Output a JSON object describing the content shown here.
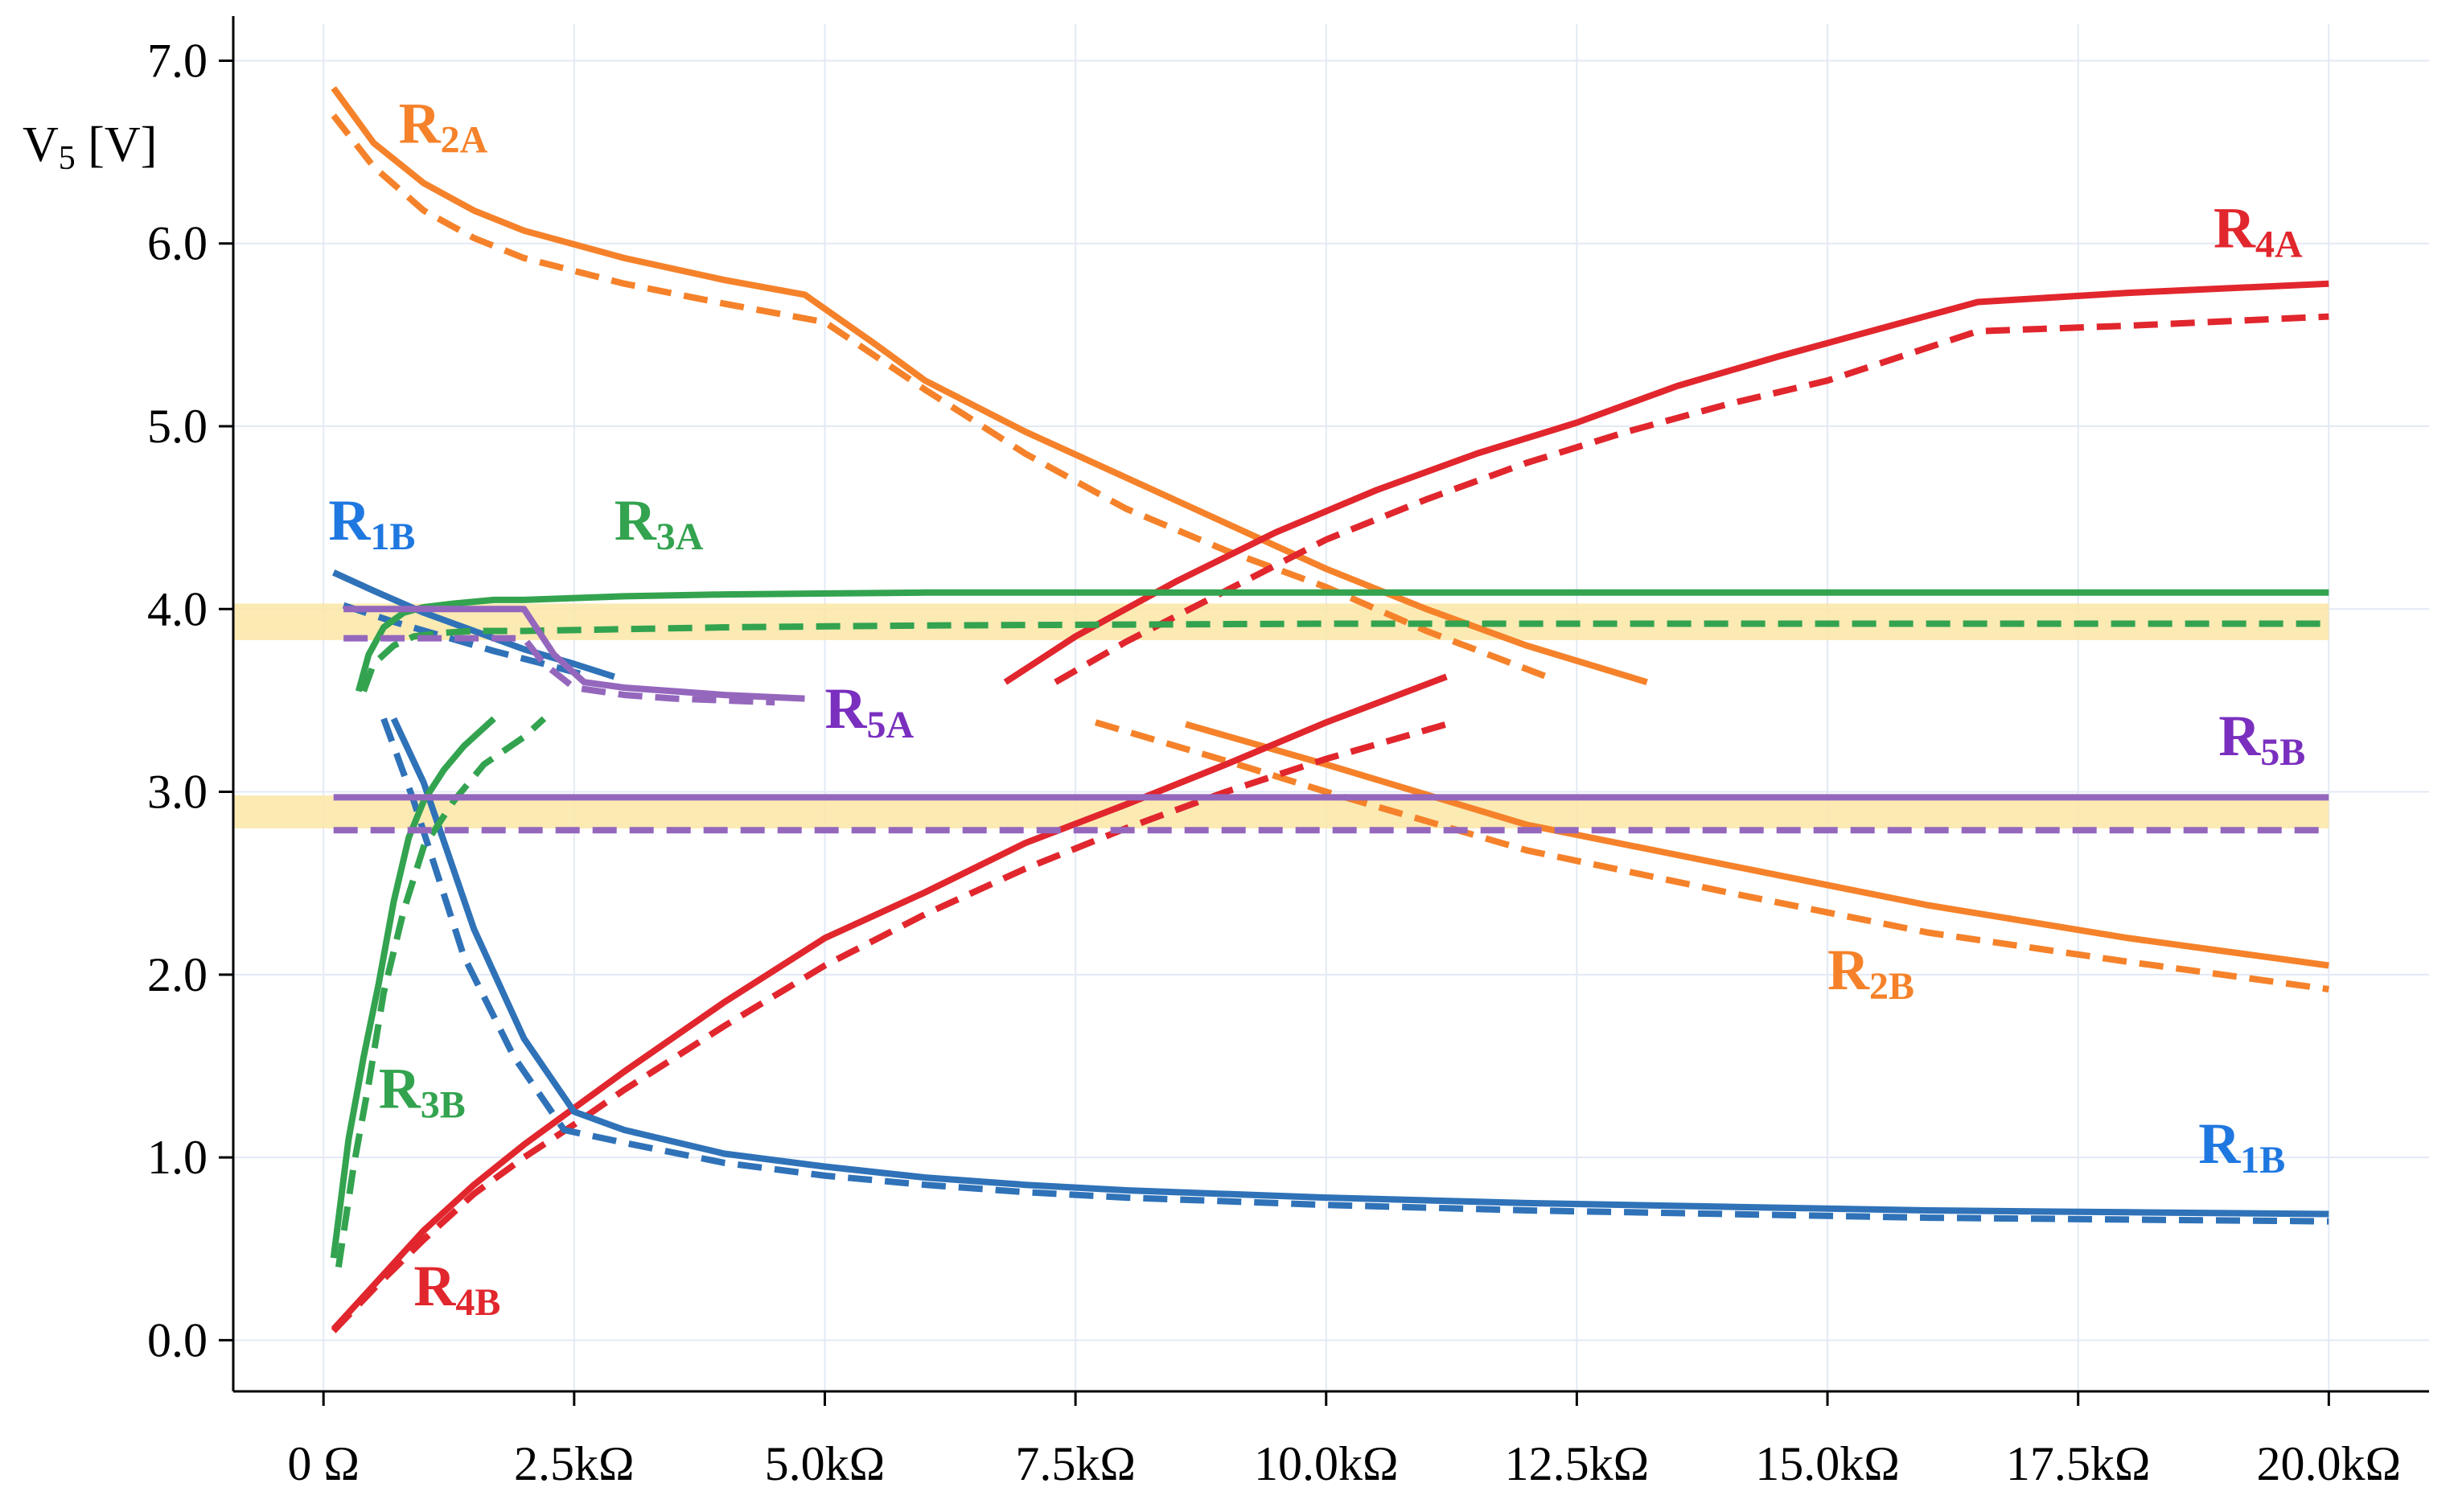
{
  "chart_data": {
    "type": "line",
    "title": "",
    "xlabel": "",
    "ylabel": "V5 [V]",
    "ylabel_parts": {
      "main": "V",
      "sub": "5",
      "unit": " [V]"
    },
    "xlim": [
      -0.9,
      21.0
    ],
    "ylim": [
      -0.28,
      7.2
    ],
    "x_ticks": [
      0,
      2.5,
      5.0,
      7.5,
      10.0,
      12.5,
      15.0,
      17.5,
      20.0
    ],
    "x_tick_labels": [
      "0 Ω",
      "2.5kΩ",
      "5.0kΩ",
      "7.5kΩ",
      "10.0kΩ",
      "12.5kΩ",
      "15.0kΩ",
      "17.5kΩ",
      "20.0kΩ"
    ],
    "y_ticks": [
      0,
      1,
      2,
      3,
      4,
      5,
      6,
      7
    ],
    "y_tick_labels": [
      "0.0",
      "1.0",
      "2.0",
      "3.0",
      "4.0",
      "5.0",
      "6.0",
      "7.0"
    ],
    "grid": true,
    "colors": {
      "orange": "#F5822A",
      "red": "#E1262D",
      "blue": "#2F72B8",
      "green": "#33A34F",
      "purple": "#9467BD",
      "band": "#FBE6A6"
    },
    "bands": [
      {
        "y": [
          3.83,
          4.03
        ],
        "x": [
          -0.9,
          20.0
        ]
      },
      {
        "y": [
          2.8,
          2.98
        ],
        "x": [
          -0.9,
          20.0
        ]
      }
    ],
    "series": [
      {
        "name": "R2A",
        "color": "#F5822A",
        "style": "solid",
        "x": [
          0.1,
          0.5,
          1.0,
          1.5,
          2.0,
          3.0,
          4.0,
          4.8,
          5.5,
          6.0,
          7.0,
          8.0,
          9.0,
          10.0,
          11.0,
          12.0,
          13.2
        ],
        "y": [
          6.85,
          6.55,
          6.33,
          6.18,
          6.07,
          5.92,
          5.8,
          5.72,
          5.45,
          5.25,
          4.97,
          4.72,
          4.47,
          4.22,
          4.0,
          3.8,
          3.6
        ]
      },
      {
        "name": "R2A",
        "color": "#F5822A",
        "style": "dashed",
        "x": [
          0.1,
          0.5,
          1.0,
          1.5,
          2.0,
          3.0,
          4.0,
          5.0,
          6.0,
          7.0,
          8.0,
          9.0,
          10.0,
          11.0,
          12.2
        ],
        "y": [
          6.7,
          6.42,
          6.18,
          6.03,
          5.92,
          5.78,
          5.67,
          5.57,
          5.2,
          4.85,
          4.55,
          4.32,
          4.12,
          3.88,
          3.63
        ]
      },
      {
        "name": "R2B",
        "color": "#F5822A",
        "style": "solid",
        "x": [
          8.6,
          10.0,
          12.0,
          14.0,
          16.0,
          18.0,
          20.0
        ],
        "y": [
          3.37,
          3.15,
          2.82,
          2.6,
          2.38,
          2.2,
          2.05
        ]
      },
      {
        "name": "R2B",
        "color": "#F5822A",
        "style": "dashed",
        "x": [
          7.7,
          9.0,
          10.0,
          12.0,
          14.0,
          16.0,
          18.0,
          20.0
        ],
        "y": [
          3.38,
          3.17,
          3.0,
          2.68,
          2.45,
          2.23,
          2.07,
          1.92
        ]
      },
      {
        "name": "R4A",
        "color": "#E1262D",
        "style": "solid",
        "x": [
          6.8,
          7.5,
          8.5,
          9.5,
          10.5,
          11.5,
          12.5,
          13.5,
          14.5,
          15.5,
          16.5,
          18.0,
          20.0
        ],
        "y": [
          3.6,
          3.85,
          4.15,
          4.42,
          4.65,
          4.85,
          5.02,
          5.22,
          5.38,
          5.53,
          5.68,
          5.73,
          5.78
        ]
      },
      {
        "name": "R4A",
        "color": "#E1262D",
        "style": "dashed",
        "x": [
          7.3,
          8.0,
          9.0,
          10.0,
          11.0,
          12.0,
          13.0,
          14.0,
          15.0,
          16.5,
          18.0,
          20.0
        ],
        "y": [
          3.6,
          3.82,
          4.1,
          4.38,
          4.6,
          4.8,
          4.97,
          5.12,
          5.25,
          5.52,
          5.55,
          5.6
        ]
      },
      {
        "name": "R4B",
        "color": "#E1262D",
        "style": "solid",
        "x": [
          0.1,
          0.5,
          1.0,
          1.5,
          2.0,
          2.5,
          3.0,
          4.0,
          5.0,
          6.0,
          7.0,
          8.0,
          9.0,
          10.0,
          11.2
        ],
        "y": [
          0.06,
          0.3,
          0.6,
          0.85,
          1.07,
          1.27,
          1.47,
          1.85,
          2.2,
          2.45,
          2.72,
          2.93,
          3.15,
          3.38,
          3.63
        ]
      },
      {
        "name": "R4B",
        "color": "#E1262D",
        "style": "dashed",
        "x": [
          0.1,
          0.5,
          1.0,
          1.5,
          2.0,
          2.5,
          3.0,
          4.0,
          5.0,
          6.0,
          7.0,
          8.0,
          9.0,
          10.0,
          11.2
        ],
        "y": [
          0.05,
          0.28,
          0.55,
          0.8,
          1.0,
          1.18,
          1.37,
          1.72,
          2.05,
          2.33,
          2.58,
          2.8,
          3.0,
          3.18,
          3.37
        ]
      },
      {
        "name": "R1B",
        "color": "#2F72B8",
        "style": "solid",
        "x": [
          0.1,
          0.5,
          1.0,
          1.5,
          2.0,
          2.5,
          2.9
        ],
        "y": [
          4.2,
          4.1,
          3.98,
          3.88,
          3.78,
          3.7,
          3.63
        ]
      },
      {
        "name": "R1B",
        "color": "#2F72B8",
        "style": "dashed",
        "x": [
          0.2,
          0.7,
          1.2,
          1.7,
          2.2,
          2.6
        ],
        "y": [
          4.02,
          3.93,
          3.85,
          3.77,
          3.7,
          3.64
        ]
      },
      {
        "name": "R1B",
        "color": "#2F72B8",
        "style": "solid",
        "x": [
          0.7,
          1.0,
          1.5,
          2.0,
          2.5,
          3.0,
          4.0,
          5.0,
          6.0,
          7.0,
          8.0,
          10.0,
          12.0,
          14.0,
          16.0,
          18.0,
          20.0
        ],
        "y": [
          3.4,
          3.05,
          2.25,
          1.65,
          1.25,
          1.15,
          1.02,
          0.95,
          0.89,
          0.85,
          0.82,
          0.78,
          0.75,
          0.73,
          0.71,
          0.7,
          0.69
        ]
      },
      {
        "name": "R1B",
        "color": "#2F72B8",
        "style": "dashed",
        "x": [
          0.6,
          0.9,
          1.4,
          1.9,
          2.4,
          3.0,
          4.0,
          5.0,
          6.0,
          7.0,
          8.0,
          10.0,
          12.0,
          14.0,
          16.0,
          18.0,
          20.0
        ],
        "y": [
          3.4,
          2.95,
          2.1,
          1.55,
          1.15,
          1.08,
          0.97,
          0.9,
          0.85,
          0.81,
          0.78,
          0.74,
          0.71,
          0.69,
          0.67,
          0.66,
          0.65
        ]
      },
      {
        "name": "R3A",
        "color": "#33A34F",
        "style": "solid",
        "x": [
          0.35,
          0.45,
          0.6,
          0.8,
          1.0,
          1.3,
          1.7,
          2.0,
          3.0,
          4.0,
          6.0,
          10.0,
          15.0,
          20.0
        ],
        "y": [
          3.55,
          3.75,
          3.9,
          3.98,
          4.01,
          4.03,
          4.05,
          4.05,
          4.07,
          4.08,
          4.09,
          4.09,
          4.09,
          4.09
        ]
      },
      {
        "name": "R3A",
        "color": "#33A34F",
        "style": "dashed",
        "x": [
          0.4,
          0.5,
          0.7,
          0.9,
          1.2,
          1.5,
          2.0,
          3.0,
          4.0,
          6.0,
          10.0,
          15.0,
          20.0
        ],
        "y": [
          3.55,
          3.7,
          3.8,
          3.85,
          3.87,
          3.88,
          3.88,
          3.89,
          3.9,
          3.91,
          3.92,
          3.92,
          3.92
        ]
      },
      {
        "name": "R3B",
        "color": "#33A34F",
        "style": "solid",
        "x": [
          0.1,
          0.25,
          0.4,
          0.55,
          0.7,
          0.85,
          1.0,
          1.2,
          1.4,
          1.7
        ],
        "y": [
          0.45,
          1.1,
          1.55,
          1.95,
          2.4,
          2.75,
          2.95,
          3.12,
          3.25,
          3.4
        ]
      },
      {
        "name": "R3B",
        "color": "#33A34F",
        "style": "dashed",
        "x": [
          0.15,
          0.3,
          0.45,
          0.6,
          0.8,
          1.0,
          1.3,
          1.6,
          2.0,
          2.2
        ],
        "y": [
          0.4,
          0.95,
          1.4,
          1.9,
          2.35,
          2.7,
          2.95,
          3.15,
          3.3,
          3.4
        ]
      },
      {
        "name": "R5A",
        "color": "#9467BD",
        "style": "solid",
        "x": [
          0.2,
          1.0,
          2.0,
          2.3,
          2.6,
          3.0,
          3.5,
          4.0,
          4.8
        ],
        "y": [
          4.0,
          4.0,
          4.0,
          3.75,
          3.6,
          3.57,
          3.55,
          3.53,
          3.51
        ]
      },
      {
        "name": "R5A",
        "color": "#9467BD",
        "style": "dashed",
        "x": [
          0.2,
          1.0,
          2.0,
          2.2,
          2.5,
          3.0,
          3.5,
          4.0,
          4.5
        ],
        "y": [
          3.84,
          3.84,
          3.84,
          3.7,
          3.57,
          3.53,
          3.51,
          3.5,
          3.49
        ]
      },
      {
        "name": "R5B",
        "color": "#9467BD",
        "style": "solid",
        "x": [
          0.1,
          20.0
        ],
        "y": [
          2.97,
          2.97
        ]
      },
      {
        "name": "R5B",
        "color": "#9467BD",
        "style": "dashed",
        "x": [
          0.1,
          20.0
        ],
        "y": [
          2.79,
          2.79
        ]
      }
    ],
    "annotations": [
      {
        "main": "R",
        "sub": "2A",
        "x": 0.75,
        "y": 6.55,
        "color": "#F5822A"
      },
      {
        "main": "R",
        "sub": "4A",
        "x": 18.85,
        "y": 5.98,
        "color": "#E1262D"
      },
      {
        "main": "R",
        "sub": "1B",
        "x": 0.05,
        "y": 4.38,
        "color": "#1F78E0"
      },
      {
        "main": "R",
        "sub": "3A",
        "x": 2.9,
        "y": 4.38,
        "color": "#33A34F"
      },
      {
        "main": "R",
        "sub": "5A",
        "x": 5.0,
        "y": 3.35,
        "color": "#7A2FBF"
      },
      {
        "main": "R",
        "sub": "5B",
        "x": 18.9,
        "y": 3.2,
        "color": "#7A2FBF"
      },
      {
        "main": "R",
        "sub": "2B",
        "x": 15.0,
        "y": 1.92,
        "color": "#F5822A"
      },
      {
        "main": "R",
        "sub": "3B",
        "x": 0.55,
        "y": 1.27,
        "color": "#33A34F"
      },
      {
        "main": "R",
        "sub": "1B",
        "x": 18.7,
        "y": 0.97,
        "color": "#1F78E0"
      },
      {
        "main": "R",
        "sub": "4B",
        "x": 0.9,
        "y": 0.19,
        "color": "#E1262D"
      }
    ]
  }
}
